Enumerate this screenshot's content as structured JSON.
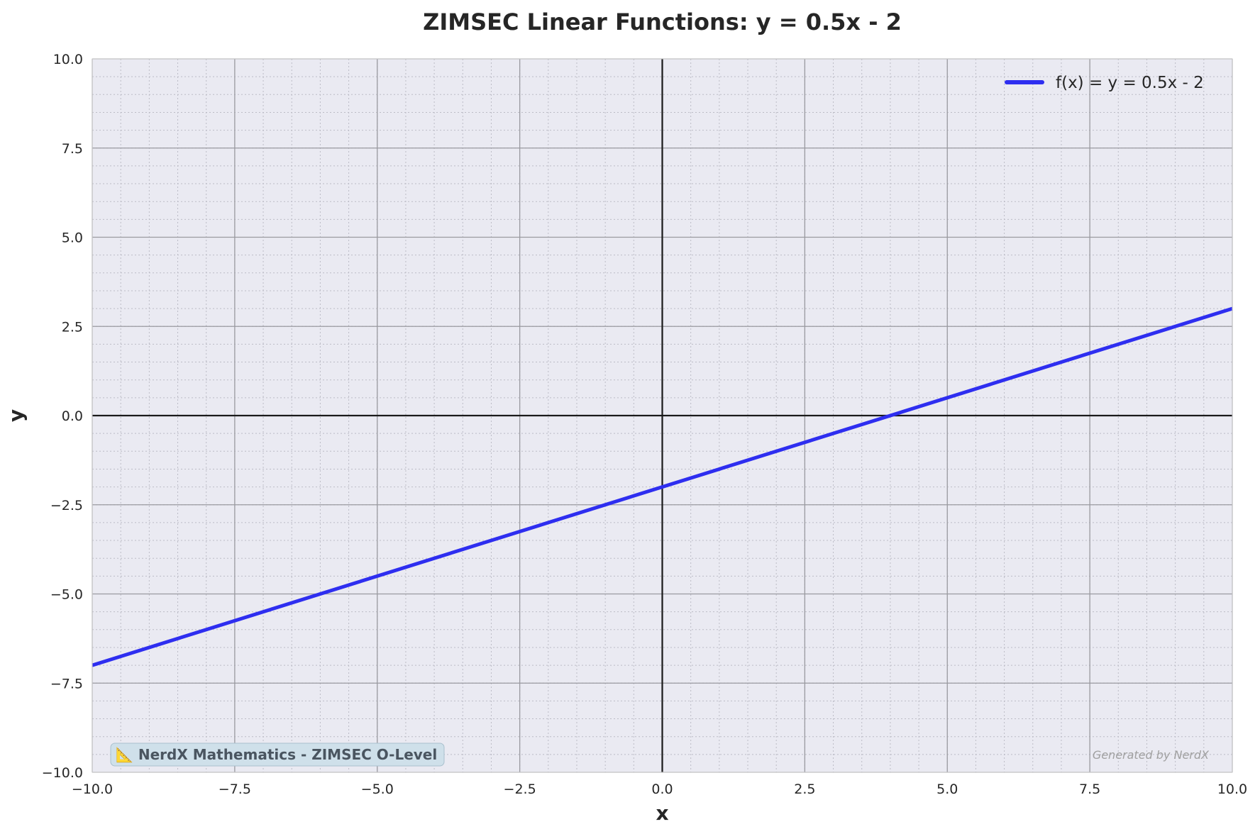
{
  "chart_data": {
    "type": "line",
    "title": "ZIMSEC Linear Functions: y = 0.5x - 2",
    "xlabel": "x",
    "ylabel": "y",
    "xlim": [
      -10,
      10
    ],
    "ylim": [
      -10,
      10
    ],
    "x_ticks": [
      -10,
      -7.5,
      -5,
      -2.5,
      0,
      2.5,
      5,
      7.5,
      10
    ],
    "y_ticks": [
      -10,
      -7.5,
      -5,
      -2.5,
      0,
      2.5,
      5,
      7.5,
      10
    ],
    "x_tick_labels": [
      "−10.0",
      "−7.5",
      "−5.0",
      "−2.5",
      "0.0",
      "2.5",
      "5.0",
      "7.5",
      "10.0"
    ],
    "y_tick_labels": [
      "−10.0",
      "−7.5",
      "−5.0",
      "−2.5",
      "0.0",
      "2.5",
      "5.0",
      "7.5",
      "10.0"
    ],
    "grid": true,
    "minor_grid": true,
    "legend_position": "top-right",
    "series": [
      {
        "name": "f(x) = y = 0.5x - 2",
        "color": "#2e2ef0",
        "x": [
          -10,
          10
        ],
        "y": [
          -7,
          3
        ]
      }
    ],
    "annotations": {
      "watermark": "📐 NerdX Mathematics - ZIMSEC O-Level",
      "credit": "Generated by NerdX"
    }
  }
}
